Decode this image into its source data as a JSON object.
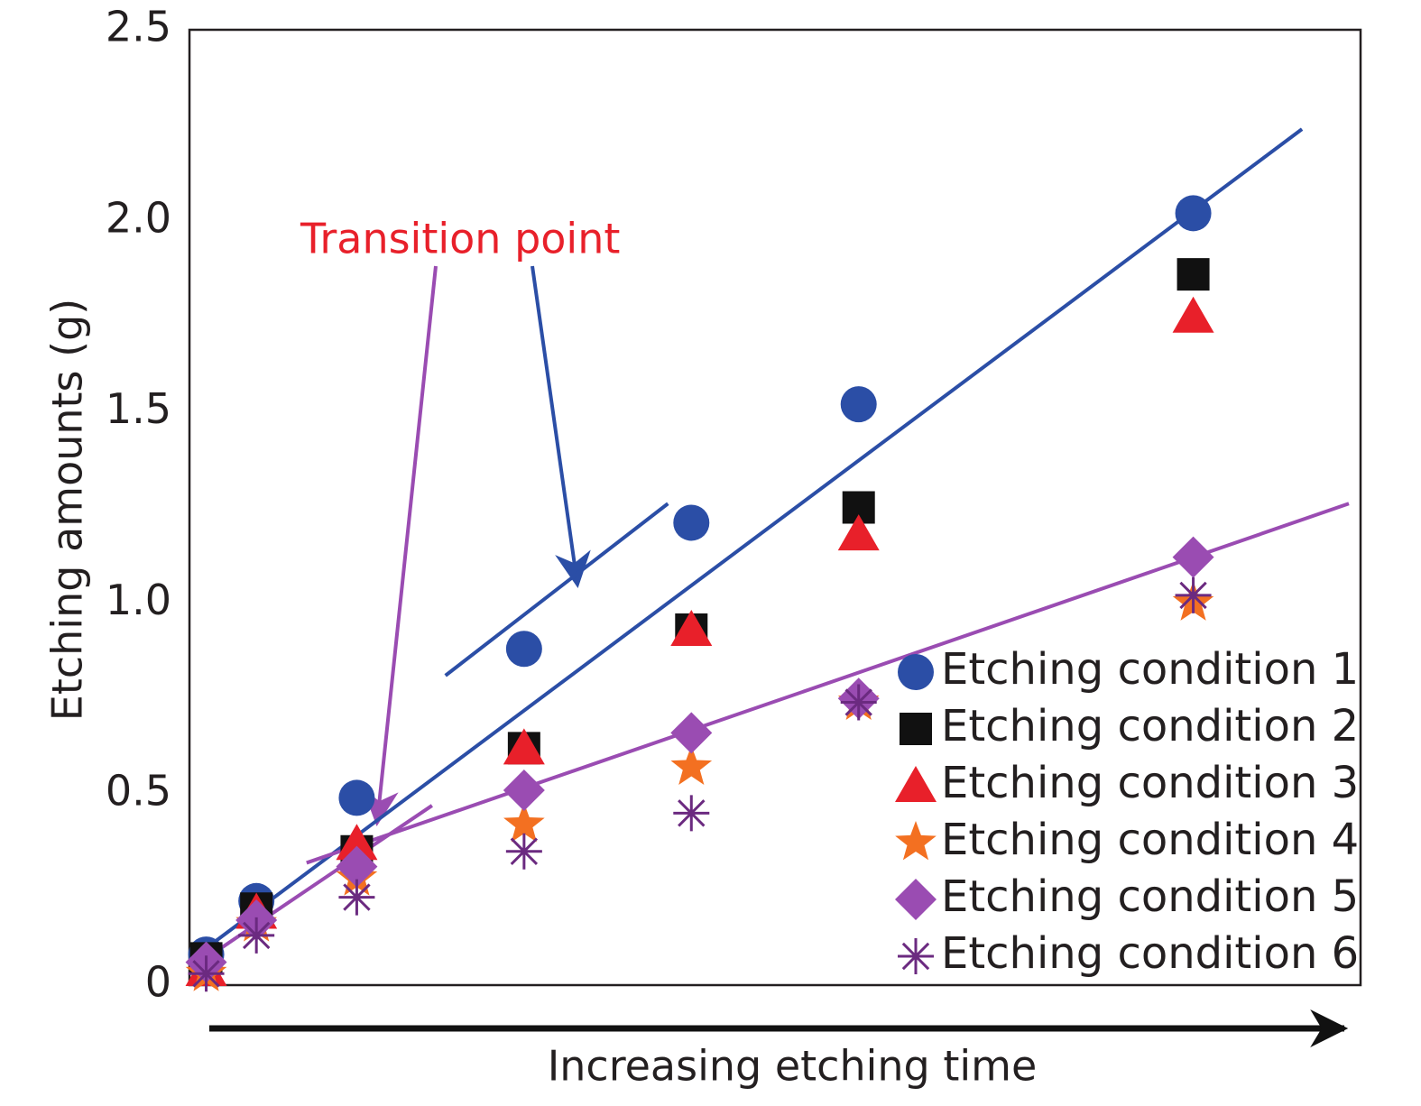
{
  "chart_data": {
    "type": "scatter",
    "y_label": "Etching amounts (g)",
    "x_label": "Increasing etching time",
    "annotation": "Transition point",
    "xlim": [
      0,
      7
    ],
    "ylim": [
      0,
      2.5
    ],
    "yticks": [
      0,
      0.5,
      {
        "value": 1,
        "label": "1.0"
      },
      1.5,
      {
        "value": 2,
        "label": "2.0"
      },
      2.5
    ],
    "grid": false,
    "legend": "lower right",
    "x": [
      0.1,
      0.4,
      1,
      2,
      3,
      4,
      6
    ],
    "series": [
      {
        "name": "Etching condition 1",
        "color": "#2b4ea6",
        "marker": "circle",
        "values": [
          0.08,
          0.22,
          0.49,
          0.88,
          1.21,
          1.52,
          2.02
        ]
      },
      {
        "name": "Etching condition 2",
        "color": "#111111",
        "marker": "square",
        "values": [
          0.07,
          0.2,
          0.35,
          0.62,
          0.93,
          1.25,
          1.86
        ]
      },
      {
        "name": "Etching condition 3",
        "color": "#e8202a",
        "marker": "triangle",
        "values": [
          0.04,
          0.19,
          0.37,
          0.62,
          0.93,
          1.18,
          1.75
        ]
      },
      {
        "name": "Etching condition 4",
        "color": "#f37021",
        "marker": "star",
        "values": [
          0.03,
          0.16,
          0.28,
          0.42,
          0.57,
          0.74,
          1.0
        ]
      },
      {
        "name": "Etching condition 5",
        "color": "#9a4cb2",
        "marker": "diamond",
        "values": [
          0.06,
          0.17,
          0.31,
          0.51,
          0.66,
          0.75,
          1.12
        ]
      },
      {
        "name": "Etching condition 6",
        "color": "#6b2a80",
        "marker": "asterisk",
        "values": [
          0.03,
          0.13,
          0.23,
          0.35,
          0.45,
          0.74,
          1.02
        ]
      }
    ],
    "trend_lines": [
      {
        "color": "#2b4ea6",
        "x": [
          0.11,
          6.65
        ],
        "y": [
          0.1,
          2.24
        ]
      },
      {
        "color": "#2b4ea6",
        "x": [
          1.53,
          2.86
        ],
        "y": [
          0.81,
          1.26
        ]
      },
      {
        "color": "#9a4cb2",
        "x": [
          0.03,
          1.45
        ],
        "y": [
          0.05,
          0.47
        ]
      },
      {
        "color": "#9a4cb2",
        "x": [
          0.7,
          6.93
        ],
        "y": [
          0.32,
          1.26
        ]
      }
    ]
  }
}
